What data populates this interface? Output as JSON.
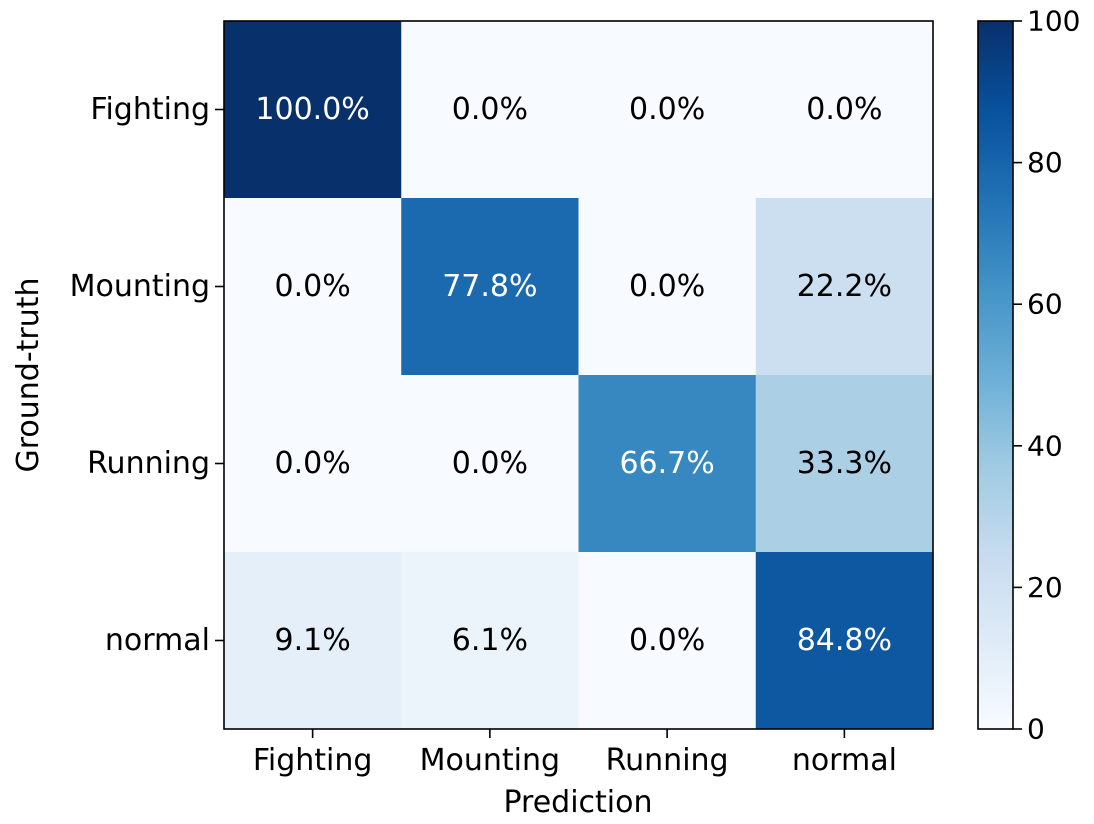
{
  "chart_data": {
    "type": "heatmap",
    "title": "",
    "xlabel": "Prediction",
    "ylabel": "Ground-truth",
    "x_categories": [
      "Fighting",
      "Mounting",
      "Running",
      "normal"
    ],
    "y_categories": [
      "Fighting",
      "Mounting",
      "Running",
      "normal"
    ],
    "values": [
      [
        100.0,
        0.0,
        0.0,
        0.0
      ],
      [
        0.0,
        77.8,
        0.0,
        22.2
      ],
      [
        0.0,
        0.0,
        66.7,
        33.3
      ],
      [
        9.1,
        6.1,
        0.0,
        84.8
      ]
    ],
    "cell_labels": [
      [
        "100.0%",
        "0.0%",
        "0.0%",
        "0.0%"
      ],
      [
        "0.0%",
        "77.8%",
        "0.0%",
        "22.2%"
      ],
      [
        "0.0%",
        "0.0%",
        "66.7%",
        "33.3%"
      ],
      [
        "9.1%",
        "6.1%",
        "0.0%",
        "84.8%"
      ]
    ],
    "colorbar": {
      "range": [
        0,
        100
      ],
      "ticks": [
        0,
        20,
        40,
        60,
        80,
        100
      ],
      "colormap": "Blues"
    },
    "colors": {
      "low": "#f7fbff",
      "high": "#08306b",
      "text_dark": "#000000",
      "text_light": "#ffffff"
    }
  }
}
